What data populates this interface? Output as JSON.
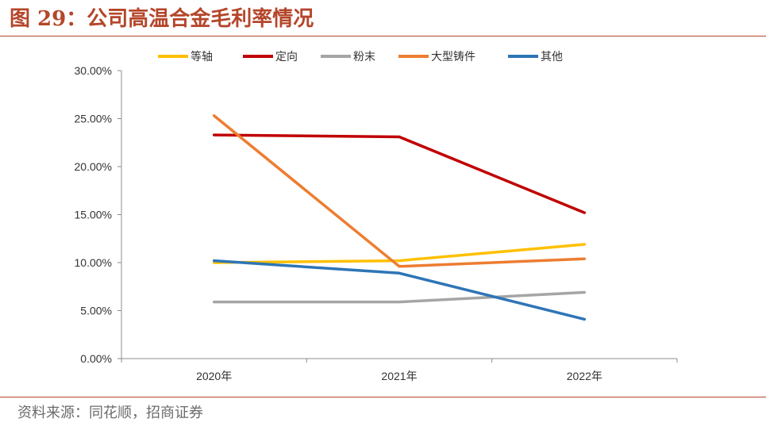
{
  "figure": {
    "title": "图 29：公司高温合金毛利率情况",
    "source": "资料来源：同花顺，招商证券"
  },
  "chart_data": {
    "type": "line",
    "title": "",
    "xlabel": "",
    "ylabel": "",
    "categories": [
      "2020年",
      "2021年",
      "2022年"
    ],
    "ylim": [
      0,
      30
    ],
    "y_ticks": [
      "0.00%",
      "5.00%",
      "10.00%",
      "15.00%",
      "20.00%",
      "25.00%",
      "30.00%"
    ],
    "y_tick_values": [
      0,
      5,
      10,
      15,
      20,
      25,
      30
    ],
    "y_unit": "%",
    "grid": false,
    "legend_position": "top",
    "series": [
      {
        "name": "等轴",
        "color": "#ffc000",
        "values": [
          10.0,
          10.2,
          11.9
        ]
      },
      {
        "name": "定向",
        "color": "#c00000",
        "values": [
          23.3,
          23.1,
          15.2
        ]
      },
      {
        "name": "粉末",
        "color": "#a5a5a5",
        "values": [
          5.9,
          5.9,
          6.9
        ]
      },
      {
        "name": "大型铸件",
        "color": "#ed7d31",
        "values": [
          25.3,
          9.6,
          10.4
        ]
      },
      {
        "name": "其他",
        "color": "#2e75b6",
        "values": [
          10.2,
          8.9,
          4.1
        ]
      }
    ]
  }
}
